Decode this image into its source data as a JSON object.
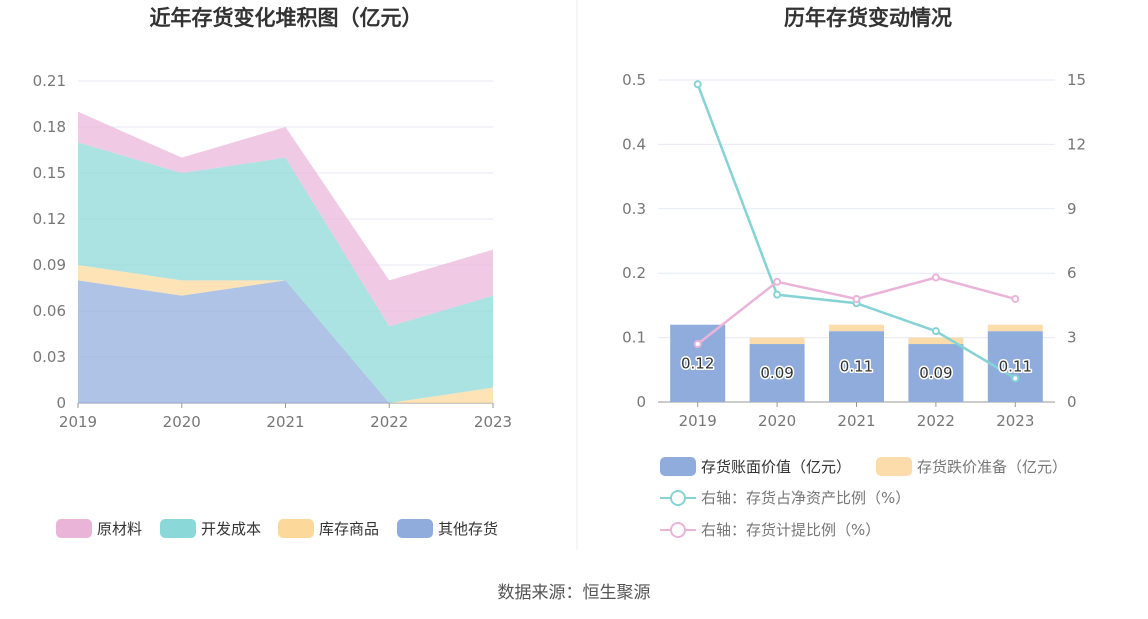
{
  "source_text": "数据来源：恒生聚源",
  "colors": {
    "raw": "#eab4d9",
    "dev": "#8ad8d8",
    "stock": "#fcd89a",
    "other": "#90acdc",
    "bar_main": "#90acdc",
    "bar_reserve": "#fbdcaa",
    "line_ratio": "#86d3d6",
    "line_provision": "#eab4d9"
  },
  "chart_data": [
    {
      "type": "area",
      "title": "近年存货变化堆积图（亿元）",
      "categories": [
        "2019",
        "2020",
        "2021",
        "2022",
        "2023"
      ],
      "ylim": [
        0,
        0.21
      ],
      "yticks": [
        "0",
        "0.03",
        "0.06",
        "0.09",
        "0.12",
        "0.15",
        "0.18",
        "0.21"
      ],
      "grid": true,
      "legend_position": "bottom",
      "stack_order_bottom_to_top": [
        "其他存货",
        "库存商品",
        "开发成本",
        "原材料"
      ],
      "series": [
        {
          "name": "原材料",
          "values": [
            0.02,
            0.01,
            0.02,
            0.03,
            0.03
          ]
        },
        {
          "name": "开发成本",
          "values": [
            0.08,
            0.07,
            0.08,
            0.05,
            0.06
          ]
        },
        {
          "name": "库存商品",
          "values": [
            0.01,
            0.01,
            0.0,
            0.0,
            0.01
          ]
        },
        {
          "name": "其他存货",
          "values": [
            0.08,
            0.07,
            0.08,
            0.0,
            0.0
          ]
        }
      ]
    },
    {
      "type": "bar",
      "title": "历年存货变动情况",
      "categories": [
        "2019",
        "2020",
        "2021",
        "2022",
        "2023"
      ],
      "ylim": [
        0,
        0.5
      ],
      "yticks": [
        "0",
        "0.1",
        "0.2",
        "0.3",
        "0.4",
        "0.5"
      ],
      "y2lim": [
        0,
        15
      ],
      "y2ticks": [
        "0",
        "3",
        "6",
        "9",
        "12",
        "15"
      ],
      "grid": true,
      "legend_position": "bottom",
      "bars": [
        {
          "name": "存货账面价值（亿元）",
          "values": [
            0.12,
            0.09,
            0.11,
            0.09,
            0.11
          ],
          "labels": [
            "0.12",
            "0.09",
            "0.11",
            "0.09",
            "0.11"
          ]
        },
        {
          "name": "存货跌价准备（亿元）",
          "values": [
            0.0,
            0.01,
            0.01,
            0.01,
            0.01
          ]
        }
      ],
      "lines": [
        {
          "name": "右轴：存货占净资产比例（%）",
          "axis": "right",
          "values": [
            14.8,
            5.0,
            4.6,
            3.3,
            1.1
          ]
        },
        {
          "name": "右轴：存货计提比例（%）",
          "axis": "right",
          "values": [
            2.7,
            5.6,
            4.8,
            5.8,
            4.8
          ]
        }
      ]
    }
  ]
}
